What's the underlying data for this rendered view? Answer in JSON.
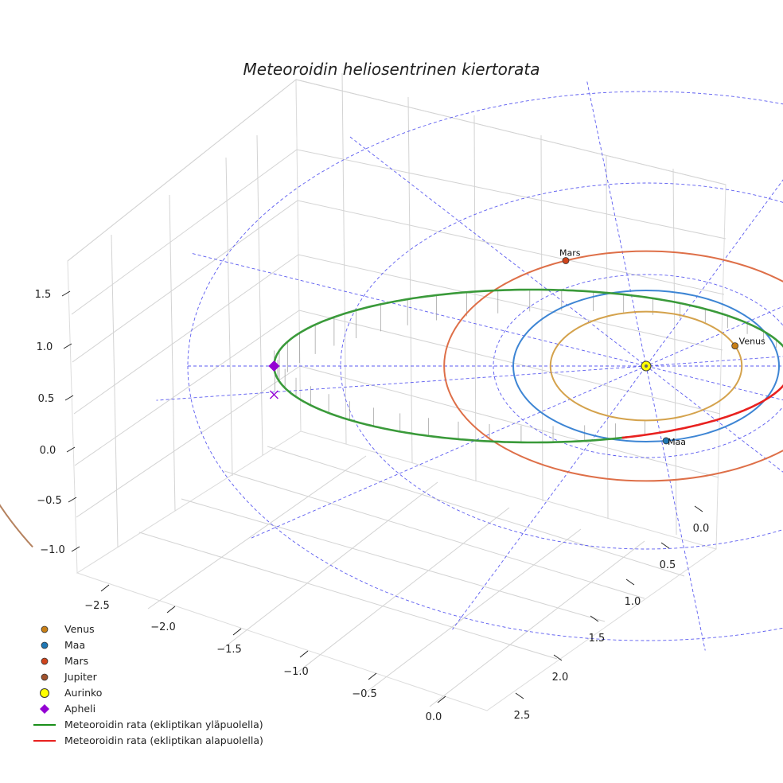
{
  "chart_data": {
    "type": "3d-orbit",
    "title": "Meteoroidin heliosentrinen kiertorata",
    "colors": {
      "venus_orbit": "#d4a24c",
      "earth_orbit": "#3d85d4",
      "mars_orbit": "#de6f48",
      "jupiter_orbit": "#b5825f",
      "meteoroid_above": "#3a9a3a",
      "meteoroid_below": "#e8211f",
      "grid_ecliptic": "#5b5bf0",
      "aphelion": "#9400d3",
      "sun": "#ffff00"
    },
    "axes": {
      "x_ticks": [
        "−2.5",
        "−2.0",
        "−1.5",
        "−1.0",
        "−0.5",
        "0.0"
      ],
      "y_ticks": [
        "0.0",
        "0.5",
        "1.0",
        "1.5",
        "2.0",
        "2.5"
      ],
      "z_ticks": [
        "1.5",
        "1.0",
        "0.5",
        "0.0",
        "−0.5",
        "−1.0"
      ],
      "xlim": [
        -2.7,
        0.1
      ],
      "ylim": [
        -0.3,
        2.7
      ],
      "zlim": [
        -1.2,
        1.7
      ]
    },
    "planets": [
      {
        "name": "Venus",
        "label": "Venus",
        "orbit_radius_au": 0.72
      },
      {
        "name": "Maa",
        "label": "Maa",
        "orbit_radius_au": 1.0
      },
      {
        "name": "Mars",
        "label": "Mars",
        "orbit_radius_au": 1.52
      },
      {
        "name": "Jupiter",
        "label": "",
        "orbit_radius_au": 5.2
      }
    ],
    "meteoroid": {
      "aphelion_au": 2.5,
      "perihelion_au": 0.98
    },
    "legend": [
      {
        "key": "venus",
        "label": "Venus",
        "marker": "dot",
        "color": "#c87f16"
      },
      {
        "key": "maa",
        "label": "Maa",
        "marker": "dot",
        "color": "#1f77b4"
      },
      {
        "key": "mars",
        "label": "Mars",
        "marker": "dot",
        "color": "#d0441c"
      },
      {
        "key": "jupiter",
        "label": "Jupiter",
        "marker": "dot",
        "color": "#a0522d"
      },
      {
        "key": "aurinko",
        "label": "Aurinko",
        "marker": "sun",
        "color": "#ffff00"
      },
      {
        "key": "apheli",
        "label": "Apheli",
        "marker": "diamond",
        "color": "#9400d3"
      },
      {
        "key": "above",
        "label": "Meteoroidin rata (ekliptikan yläpuolella)",
        "marker": "line",
        "color": "#1a8f1a"
      },
      {
        "key": "below",
        "label": "Meteoroidin rata (ekliptikan alapuolella)",
        "marker": "line",
        "color": "#e8211f"
      }
    ]
  }
}
